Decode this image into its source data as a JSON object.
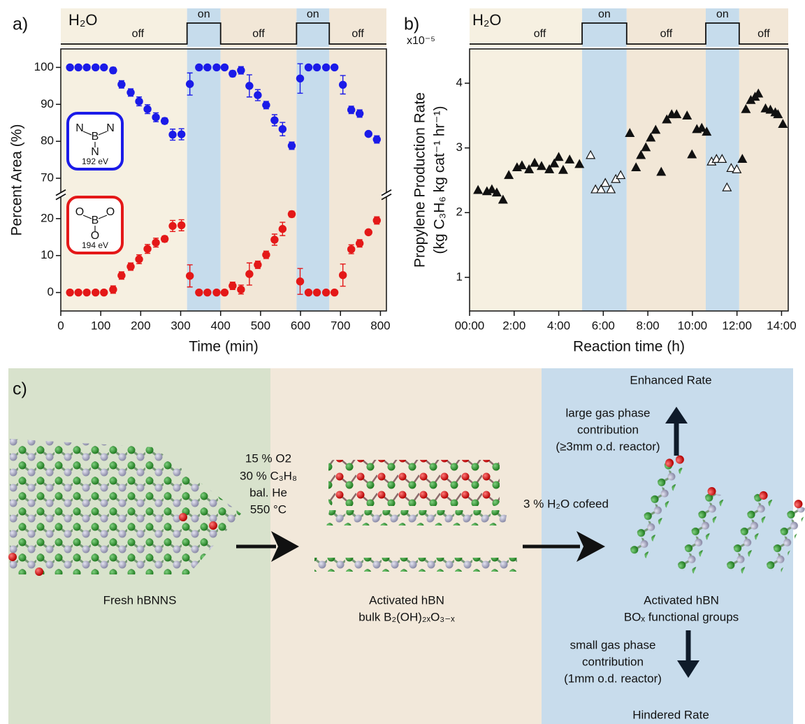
{
  "chart_data": [
    {
      "type": "scatter",
      "panel": "a)",
      "h2o_label": "H₂O",
      "xlabel": "Time (min)",
      "ylabel": "Percent Area (%)",
      "xlim": [
        0,
        815
      ],
      "xticks": [
        0,
        100,
        200,
        300,
        400,
        500,
        600,
        700,
        800
      ],
      "ylim": [
        -5,
        105
      ],
      "ybreak": [
        24,
        68
      ],
      "yticks": [
        0,
        10,
        20,
        70,
        80,
        90,
        100
      ],
      "regions": [
        {
          "label": "off",
          "start": 0,
          "end": 316,
          "color": "#f6f0e1"
        },
        {
          "label": "on",
          "start": 316,
          "end": 400,
          "color": "#c6dcec"
        },
        {
          "label": "off",
          "start": 400,
          "end": 590,
          "color": "#f2e7d7"
        },
        {
          "label": "on",
          "start": 590,
          "end": 672,
          "color": "#c6dcec"
        },
        {
          "label": "off",
          "start": 672,
          "end": 815,
          "color": "#f2e7d7"
        }
      ],
      "x": [
        23,
        44,
        65,
        87,
        108,
        131,
        152,
        175,
        196,
        217,
        238,
        260,
        280,
        302,
        323,
        346,
        367,
        390,
        410,
        430,
        451,
        472,
        493,
        514,
        535,
        555,
        578,
        599,
        620,
        641,
        664,
        685,
        706,
        727,
        748,
        770,
        791
      ],
      "series": [
        {
          "color": "#1b1be8",
          "marker": "circle",
          "filled": true,
          "values": [
            100,
            100,
            100,
            100,
            100,
            99.2,
            95.4,
            93.2,
            90.8,
            88.7,
            86.5,
            85.5,
            81.8,
            81.9,
            95.5,
            100,
            100,
            100,
            100,
            98.3,
            99.2,
            95,
            92.5,
            89.8,
            85.7,
            83.3,
            78.8,
            97,
            100,
            100,
            100,
            100,
            95.3,
            88.5,
            87.5,
            82,
            80.5
          ],
          "errors": [
            0,
            0,
            0,
            0,
            0,
            0.8,
            1,
            1,
            1.2,
            1.2,
            1.2,
            0.8,
            1.5,
            1.5,
            3,
            0.5,
            0.3,
            0.3,
            0.3,
            0.8,
            1,
            3,
            1.5,
            1,
            1.5,
            1.8,
            1,
            4,
            0.5,
            0.5,
            0.5,
            0.5,
            2.5,
            1,
            1,
            0.5,
            1
          ]
        },
        {
          "color": "#e41818",
          "marker": "circle",
          "filled": true,
          "values": [
            0,
            0,
            0,
            0,
            0,
            0.8,
            4.6,
            7,
            9,
            11.8,
            13.5,
            14.5,
            18,
            18.2,
            4.5,
            0,
            0,
            0,
            0,
            1.8,
            0.8,
            5,
            7.5,
            10.2,
            14.3,
            17.2,
            21.2,
            3,
            0,
            0,
            0,
            0,
            4.7,
            11.7,
            13.3,
            16.3,
            19.5
          ],
          "errors": [
            0,
            0,
            0,
            0,
            0,
            1,
            1,
            1,
            1.2,
            1.2,
            1.2,
            0.8,
            1.5,
            1.5,
            3,
            0,
            0,
            0,
            0,
            1,
            1.2,
            3,
            1,
            1,
            1.5,
            1.8,
            0.8,
            3.5,
            0,
            0,
            0,
            0,
            3,
            1.2,
            1,
            0.5,
            1
          ]
        }
      ],
      "insets": [
        {
          "atoms": [
            "N",
            "B",
            "N",
            "N"
          ],
          "label": "192 eV",
          "color": "#1b1be8"
        },
        {
          "atoms": [
            "O",
            "B",
            "O",
            "O"
          ],
          "label": "194 eV",
          "color": "#e41818"
        }
      ]
    },
    {
      "type": "scatter",
      "panel": "b)",
      "h2o_label": "H₂O",
      "y_multiplier": "x10⁻⁵",
      "xlabel": "Reaction time (h)",
      "ylabel": [
        "Propylene Production Rate",
        "(kg C₃H₆ kg cat⁻¹ hr⁻¹)"
      ],
      "xlim": [
        0,
        14.3
      ],
      "xticks": [
        {
          "value": 0,
          "label": "00:00"
        },
        {
          "value": 2,
          "label": "2:00"
        },
        {
          "value": 4,
          "label": "4:00"
        },
        {
          "value": 6,
          "label": "6:00"
        },
        {
          "value": 8,
          "label": "8:00"
        },
        {
          "value": 10,
          "label": "10:00"
        },
        {
          "value": 12,
          "label": "12:00"
        },
        {
          "value": 14,
          "label": "14:00"
        }
      ],
      "ylim": [
        0.48,
        4.53
      ],
      "yticks": [
        1,
        2,
        3,
        4
      ],
      "regions": [
        {
          "label": "off",
          "start": 0,
          "end": 5.05,
          "color": "#f6f0e1"
        },
        {
          "label": "on",
          "start": 5.05,
          "end": 7.05,
          "color": "#c6dcec"
        },
        {
          "label": "off",
          "start": 7.05,
          "end": 10.6,
          "color": "#f2e7d7"
        },
        {
          "label": "on",
          "start": 10.6,
          "end": 12.1,
          "color": "#c6dcec"
        },
        {
          "label": "off",
          "start": 12.1,
          "end": 14.3,
          "color": "#f2e7d7"
        }
      ],
      "series": [
        {
          "color": "#111111",
          "marker": "triangle",
          "filled": true,
          "x": [
            0.38,
            0.78,
            1.0,
            1.22,
            1.5,
            1.76,
            2.13,
            2.35,
            2.67,
            2.92,
            3.23,
            3.58,
            3.8,
            4.0,
            4.2,
            4.49,
            4.93,
            7.19,
            7.47,
            7.69,
            7.91,
            8.13,
            8.35,
            8.6,
            8.85,
            9.07,
            9.29,
            9.76,
            9.98,
            10.2,
            10.42,
            10.64,
            12.24,
            12.4,
            12.62,
            12.81,
            12.96,
            13.28,
            13.5,
            13.72,
            13.84,
            14.06
          ],
          "values": [
            2.35,
            2.33,
            2.36,
            2.31,
            2.2,
            2.58,
            2.7,
            2.73,
            2.67,
            2.77,
            2.72,
            2.67,
            2.76,
            2.86,
            2.66,
            2.82,
            2.75,
            3.23,
            2.7,
            2.89,
            3.01,
            3.16,
            3.28,
            2.63,
            3.44,
            3.52,
            3.52,
            3.5,
            2.9,
            3.29,
            3.31,
            3.25,
            2.83,
            3.6,
            3.74,
            3.79,
            3.84,
            3.61,
            3.59,
            3.55,
            3.52,
            3.37
          ]
        },
        {
          "color": "#111111",
          "marker": "triangle",
          "filled": false,
          "x": [
            5.43,
            5.65,
            5.9,
            6.09,
            6.34,
            6.56,
            6.78,
            10.86,
            11.08,
            11.33,
            11.55,
            11.74,
            11.99
          ],
          "values": [
            2.89,
            2.36,
            2.36,
            2.46,
            2.36,
            2.52,
            2.58,
            2.79,
            2.83,
            2.83,
            2.39,
            2.69,
            2.67
          ]
        }
      ]
    }
  ],
  "diagram": {
    "panel": "c)",
    "fresh": "Fresh hBNNS",
    "conditions": [
      "15 % O2",
      "30 % C₃H₈",
      "bal. He",
      "550 °C"
    ],
    "activated": [
      "Activated hBN",
      "bulk B₂(OH)₂ₓO₃₋ₓ"
    ],
    "cofeed": "3 % H₂O cofeed",
    "enhanced": "Enhanced Rate",
    "large": [
      "large gas phase",
      "contribution",
      "(≥3mm o.d. reactor)"
    ],
    "activated_bo": [
      "Activated hBN",
      "BOₓ functional groups"
    ],
    "small": [
      "small gas phase",
      "contribution",
      "(1mm o.d. reactor)"
    ],
    "hindered": "Hindered Rate"
  }
}
